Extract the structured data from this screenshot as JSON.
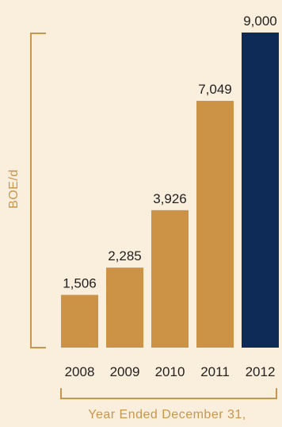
{
  "chart_data": {
    "type": "bar",
    "categories": [
      "2008",
      "2009",
      "2010",
      "2011",
      "2012"
    ],
    "values": [
      1506,
      2285,
      3926,
      7049,
      9000
    ],
    "value_labels": [
      "1,506",
      "2,285",
      "3,926",
      "7,049",
      "9,000"
    ],
    "ylabel": "BOE/d",
    "xlabel": "Year Ended December 31,",
    "ylim": [
      0,
      9000
    ],
    "grid": false,
    "colors": {
      "bar": "#cc9245",
      "highlight_bar": "#0e2a56",
      "bracket": "#c9964e",
      "axis_text": "#c9964e",
      "background": "#faeedd"
    },
    "highlight_index": 4
  }
}
